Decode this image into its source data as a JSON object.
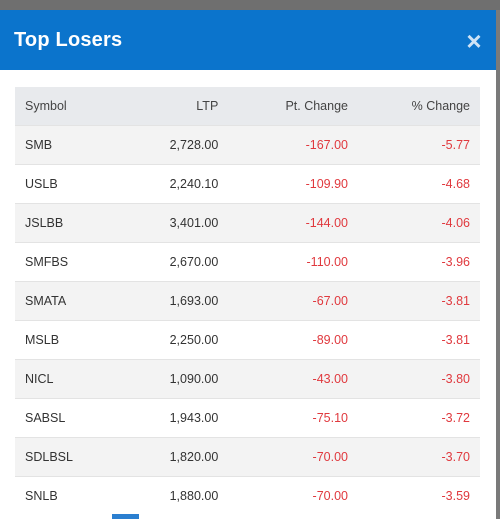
{
  "modal": {
    "title": "Top Losers",
    "close_label": "×"
  },
  "table": {
    "headers": {
      "symbol": "Symbol",
      "ltp": "LTP",
      "pt_change": "Pt. Change",
      "pct_change": "% Change"
    },
    "rows": [
      {
        "symbol": "SMB",
        "ltp": "2,728.00",
        "pt_change": "-167.00",
        "pct_change": "-5.77"
      },
      {
        "symbol": "USLB",
        "ltp": "2,240.10",
        "pt_change": "-109.90",
        "pct_change": "-4.68"
      },
      {
        "symbol": "JSLBB",
        "ltp": "3,401.00",
        "pt_change": "-144.00",
        "pct_change": "-4.06"
      },
      {
        "symbol": "SMFBS",
        "ltp": "2,670.00",
        "pt_change": "-110.00",
        "pct_change": "-3.96"
      },
      {
        "symbol": "SMATA",
        "ltp": "1,693.00",
        "pt_change": "-67.00",
        "pct_change": "-3.81"
      },
      {
        "symbol": "MSLB",
        "ltp": "2,250.00",
        "pt_change": "-89.00",
        "pct_change": "-3.81"
      },
      {
        "symbol": "NICL",
        "ltp": "1,090.00",
        "pt_change": "-43.00",
        "pct_change": "-3.80"
      },
      {
        "symbol": "SABSL",
        "ltp": "1,943.00",
        "pt_change": "-75.10",
        "pct_change": "-3.72"
      },
      {
        "symbol": "SDLBSL",
        "ltp": "1,820.00",
        "pt_change": "-70.00",
        "pct_change": "-3.70"
      },
      {
        "symbol": "SNLB",
        "ltp": "1,880.00",
        "pt_change": "-70.00",
        "pct_change": "-3.59"
      }
    ]
  },
  "colors": {
    "header_blue": "#0b74cc",
    "negative": "#e0393e",
    "overlay": "#6f6f6f"
  }
}
